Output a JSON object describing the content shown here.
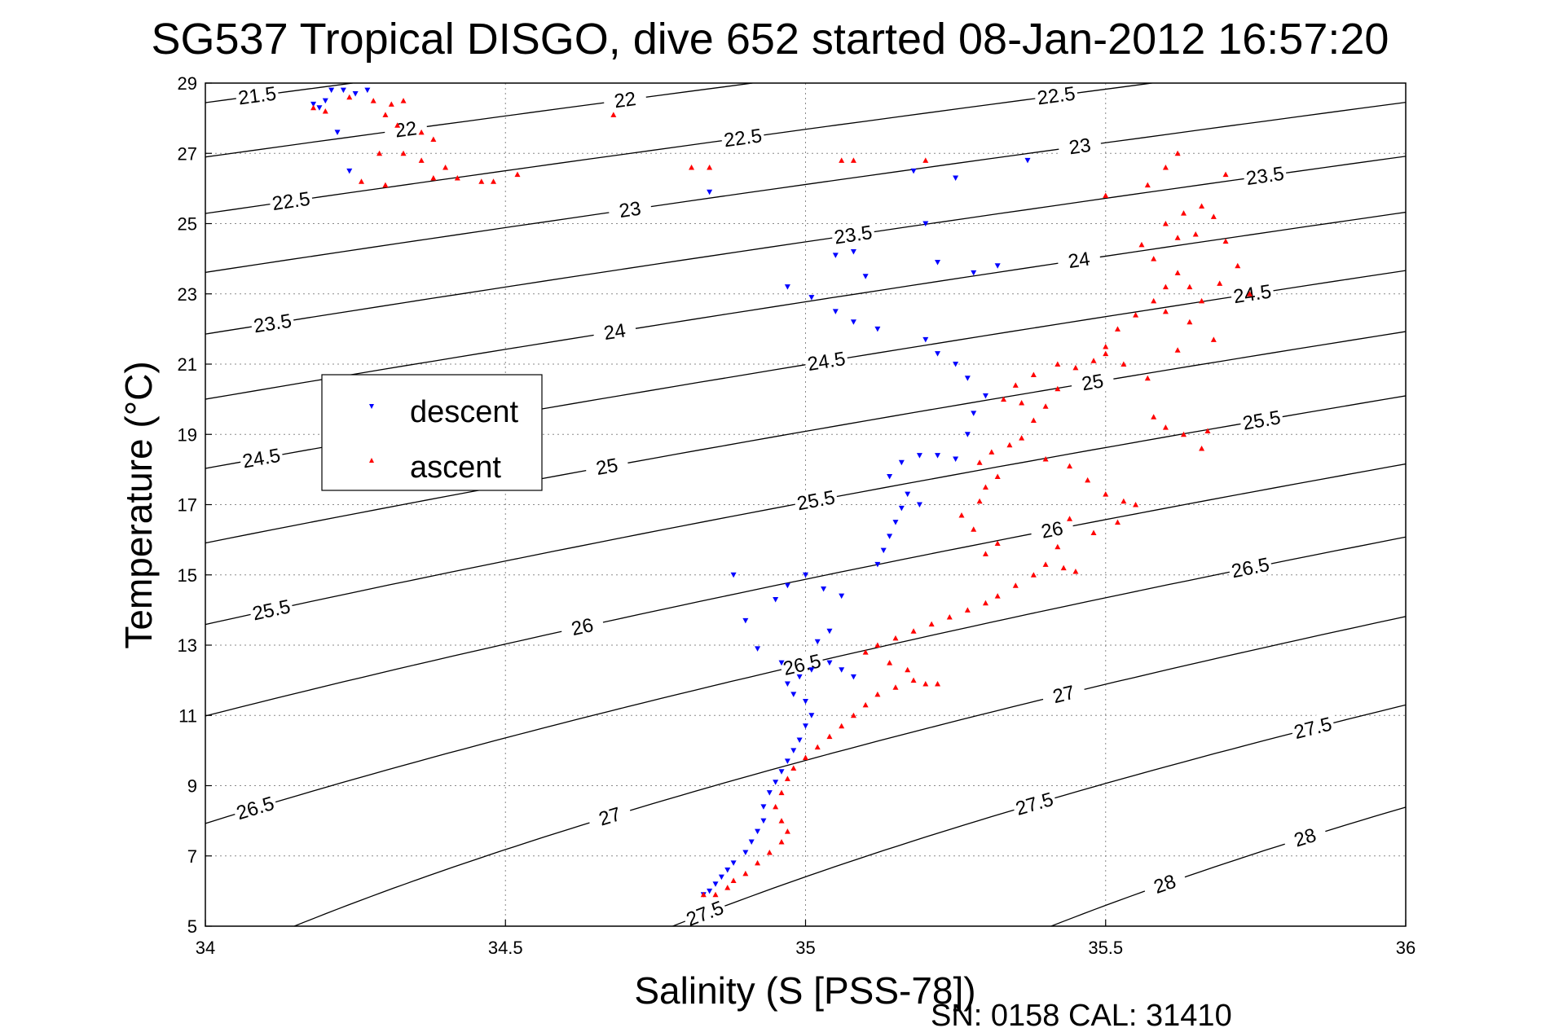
{
  "chart_data": {
    "type": "scatter",
    "title": "SG537 Tropical DISGO, dive 652 started 08-Jan-2012 16:57:20",
    "xlabel": "Salinity (S [PSS-78])",
    "ylabel": "Temperature (°C)",
    "xlim": [
      34,
      36
    ],
    "ylim": [
      5,
      29
    ],
    "x_ticks": [
      "34",
      "34.5",
      "35",
      "35.5",
      "36"
    ],
    "y_ticks": [
      "5",
      "7",
      "9",
      "11",
      "13",
      "15",
      "17",
      "19",
      "21",
      "23",
      "25",
      "27",
      "29"
    ],
    "grid": true,
    "legend_position": "upper-left",
    "footnote": "SN: 0158  CAL: 31410",
    "density_contours": {
      "levels": [
        "21.5",
        "22",
        "22.5",
        "23",
        "23.5",
        "24",
        "24.5",
        "25",
        "25.5",
        "26",
        "26.5",
        "27",
        "27.5",
        "28"
      ],
      "color": "#000000"
    },
    "series": [
      {
        "name": "descent",
        "marker": "downward-triangle",
        "color": "#0000ff",
        "points": [
          [
            34.18,
            28.4
          ],
          [
            34.19,
            28.3
          ],
          [
            34.2,
            28.5
          ],
          [
            34.21,
            28.8
          ],
          [
            34.23,
            28.8
          ],
          [
            34.25,
            28.7
          ],
          [
            34.27,
            28.8
          ],
          [
            34.22,
            27.6
          ],
          [
            34.24,
            26.5
          ],
          [
            34.83,
            5.9
          ],
          [
            34.84,
            6.0
          ],
          [
            34.85,
            6.2
          ],
          [
            34.86,
            6.4
          ],
          [
            34.87,
            6.6
          ],
          [
            34.88,
            6.8
          ],
          [
            34.9,
            7.1
          ],
          [
            34.91,
            7.4
          ],
          [
            34.92,
            7.7
          ],
          [
            34.93,
            8.0
          ],
          [
            34.93,
            8.4
          ],
          [
            34.94,
            8.8
          ],
          [
            34.95,
            9.1
          ],
          [
            34.96,
            9.4
          ],
          [
            34.97,
            9.7
          ],
          [
            34.98,
            10.0
          ],
          [
            34.99,
            10.3
          ],
          [
            35.0,
            10.7
          ],
          [
            35.01,
            11.0
          ],
          [
            35.0,
            11.4
          ],
          [
            34.98,
            11.6
          ],
          [
            34.97,
            11.9
          ],
          [
            34.99,
            12.1
          ],
          [
            35.01,
            12.3
          ],
          [
            35.04,
            12.5
          ],
          [
            35.06,
            12.3
          ],
          [
            35.08,
            12.1
          ],
          [
            34.96,
            12.5
          ],
          [
            34.92,
            12.9
          ],
          [
            35.02,
            13.1
          ],
          [
            35.04,
            13.4
          ],
          [
            34.9,
            13.7
          ],
          [
            34.95,
            14.3
          ],
          [
            35.03,
            14.6
          ],
          [
            35.06,
            14.4
          ],
          [
            34.88,
            15.0
          ],
          [
            35.0,
            15.0
          ],
          [
            34.97,
            14.7
          ],
          [
            35.12,
            15.3
          ],
          [
            35.13,
            15.7
          ],
          [
            35.14,
            16.1
          ],
          [
            35.15,
            16.5
          ],
          [
            35.16,
            16.9
          ],
          [
            35.17,
            17.3
          ],
          [
            35.19,
            17.0
          ],
          [
            35.14,
            17.8
          ],
          [
            35.16,
            18.2
          ],
          [
            35.19,
            18.4
          ],
          [
            35.22,
            18.4
          ],
          [
            35.25,
            18.3
          ],
          [
            35.27,
            19.0
          ],
          [
            35.28,
            19.6
          ],
          [
            35.3,
            20.1
          ],
          [
            35.27,
            20.6
          ],
          [
            35.25,
            21.0
          ],
          [
            35.22,
            21.3
          ],
          [
            35.2,
            21.7
          ],
          [
            35.12,
            22.0
          ],
          [
            35.08,
            22.2
          ],
          [
            35.05,
            22.5
          ],
          [
            35.01,
            22.9
          ],
          [
            34.97,
            23.2
          ],
          [
            35.1,
            23.5
          ],
          [
            35.08,
            24.2
          ],
          [
            35.22,
            23.9
          ],
          [
            35.28,
            23.6
          ],
          [
            35.32,
            23.8
          ],
          [
            35.2,
            25.0
          ],
          [
            35.18,
            26.5
          ],
          [
            35.25,
            26.3
          ],
          [
            35.37,
            26.8
          ],
          [
            34.84,
            25.9
          ],
          [
            35.05,
            24.1
          ]
        ]
      },
      {
        "name": "ascent",
        "marker": "upward-triangle",
        "color": "#ff0000",
        "points": [
          [
            34.18,
            28.3
          ],
          [
            34.2,
            28.2
          ],
          [
            34.24,
            28.6
          ],
          [
            34.28,
            28.5
          ],
          [
            34.31,
            28.4
          ],
          [
            34.33,
            28.5
          ],
          [
            34.3,
            28.1
          ],
          [
            34.32,
            27.8
          ],
          [
            34.36,
            27.6
          ],
          [
            34.38,
            27.4
          ],
          [
            34.29,
            27.0
          ],
          [
            34.33,
            27.0
          ],
          [
            34.36,
            26.8
          ],
          [
            34.4,
            26.6
          ],
          [
            34.38,
            26.3
          ],
          [
            34.42,
            26.3
          ],
          [
            34.46,
            26.2
          ],
          [
            34.48,
            26.2
          ],
          [
            34.52,
            26.4
          ],
          [
            34.3,
            26.1
          ],
          [
            34.26,
            26.2
          ],
          [
            34.68,
            28.1
          ],
          [
            34.81,
            26.6
          ],
          [
            34.84,
            26.6
          ],
          [
            35.06,
            26.8
          ],
          [
            35.08,
            26.8
          ],
          [
            35.2,
            26.8
          ],
          [
            34.83,
            5.9
          ],
          [
            34.85,
            5.9
          ],
          [
            34.87,
            6.1
          ],
          [
            34.88,
            6.3
          ],
          [
            34.9,
            6.5
          ],
          [
            34.92,
            6.8
          ],
          [
            34.94,
            7.1
          ],
          [
            34.96,
            7.4
          ],
          [
            34.97,
            7.7
          ],
          [
            34.96,
            8.0
          ],
          [
            34.95,
            8.4
          ],
          [
            34.96,
            8.8
          ],
          [
            34.97,
            9.2
          ],
          [
            34.98,
            9.5
          ],
          [
            35.0,
            9.8
          ],
          [
            35.02,
            10.1
          ],
          [
            35.04,
            10.4
          ],
          [
            35.06,
            10.7
          ],
          [
            35.08,
            11.0
          ],
          [
            35.1,
            11.3
          ],
          [
            35.12,
            11.6
          ],
          [
            35.15,
            11.8
          ],
          [
            35.18,
            12.0
          ],
          [
            35.2,
            11.9
          ],
          [
            35.22,
            11.9
          ],
          [
            35.17,
            12.3
          ],
          [
            35.14,
            12.5
          ],
          [
            35.1,
            12.8
          ],
          [
            35.12,
            13.0
          ],
          [
            35.15,
            13.2
          ],
          [
            35.18,
            13.4
          ],
          [
            35.21,
            13.6
          ],
          [
            35.24,
            13.8
          ],
          [
            35.27,
            14.0
          ],
          [
            35.3,
            14.2
          ],
          [
            35.32,
            14.4
          ],
          [
            35.35,
            14.7
          ],
          [
            35.38,
            15.0
          ],
          [
            35.4,
            15.3
          ],
          [
            35.43,
            15.2
          ],
          [
            35.45,
            15.1
          ],
          [
            35.3,
            15.6
          ],
          [
            35.32,
            15.9
          ],
          [
            35.28,
            16.3
          ],
          [
            35.26,
            16.7
          ],
          [
            35.29,
            17.1
          ],
          [
            35.3,
            17.5
          ],
          [
            35.32,
            17.8
          ],
          [
            35.29,
            18.2
          ],
          [
            35.31,
            18.5
          ],
          [
            35.34,
            18.7
          ],
          [
            35.36,
            18.9
          ],
          [
            35.38,
            19.4
          ],
          [
            35.4,
            19.8
          ],
          [
            35.33,
            20.0
          ],
          [
            35.35,
            20.4
          ],
          [
            35.38,
            20.7
          ],
          [
            35.42,
            21.0
          ],
          [
            35.45,
            20.9
          ],
          [
            35.48,
            21.1
          ],
          [
            35.5,
            21.3
          ],
          [
            35.42,
            20.3
          ],
          [
            35.36,
            19.9
          ],
          [
            35.4,
            18.3
          ],
          [
            35.44,
            18.1
          ],
          [
            35.47,
            17.7
          ],
          [
            35.5,
            17.3
          ],
          [
            35.53,
            17.1
          ],
          [
            35.55,
            17.0
          ],
          [
            35.52,
            16.5
          ],
          [
            35.48,
            16.2
          ],
          [
            35.42,
            15.8
          ],
          [
            35.44,
            16.6
          ],
          [
            35.5,
            21.5
          ],
          [
            35.52,
            22.0
          ],
          [
            35.55,
            22.4
          ],
          [
            35.58,
            22.8
          ],
          [
            35.6,
            23.2
          ],
          [
            35.62,
            23.6
          ],
          [
            35.64,
            23.2
          ],
          [
            35.6,
            22.5
          ],
          [
            35.58,
            24.0
          ],
          [
            35.56,
            24.4
          ],
          [
            35.62,
            24.6
          ],
          [
            35.6,
            25.0
          ],
          [
            35.63,
            25.3
          ],
          [
            35.66,
            25.5
          ],
          [
            35.68,
            25.2
          ],
          [
            35.65,
            24.7
          ],
          [
            35.7,
            24.5
          ],
          [
            35.72,
            23.8
          ],
          [
            35.69,
            23.3
          ],
          [
            35.74,
            23.0
          ],
          [
            35.66,
            22.8
          ],
          [
            35.64,
            22.2
          ],
          [
            35.68,
            21.7
          ],
          [
            35.62,
            21.4
          ],
          [
            35.57,
            20.6
          ],
          [
            35.53,
            21.0
          ],
          [
            35.58,
            19.5
          ],
          [
            35.6,
            19.2
          ],
          [
            35.63,
            19.0
          ],
          [
            35.67,
            19.1
          ],
          [
            35.66,
            18.6
          ],
          [
            35.5,
            25.8
          ],
          [
            35.57,
            26.1
          ],
          [
            35.6,
            26.6
          ],
          [
            35.62,
            27.0
          ],
          [
            35.7,
            26.4
          ]
        ]
      }
    ]
  }
}
